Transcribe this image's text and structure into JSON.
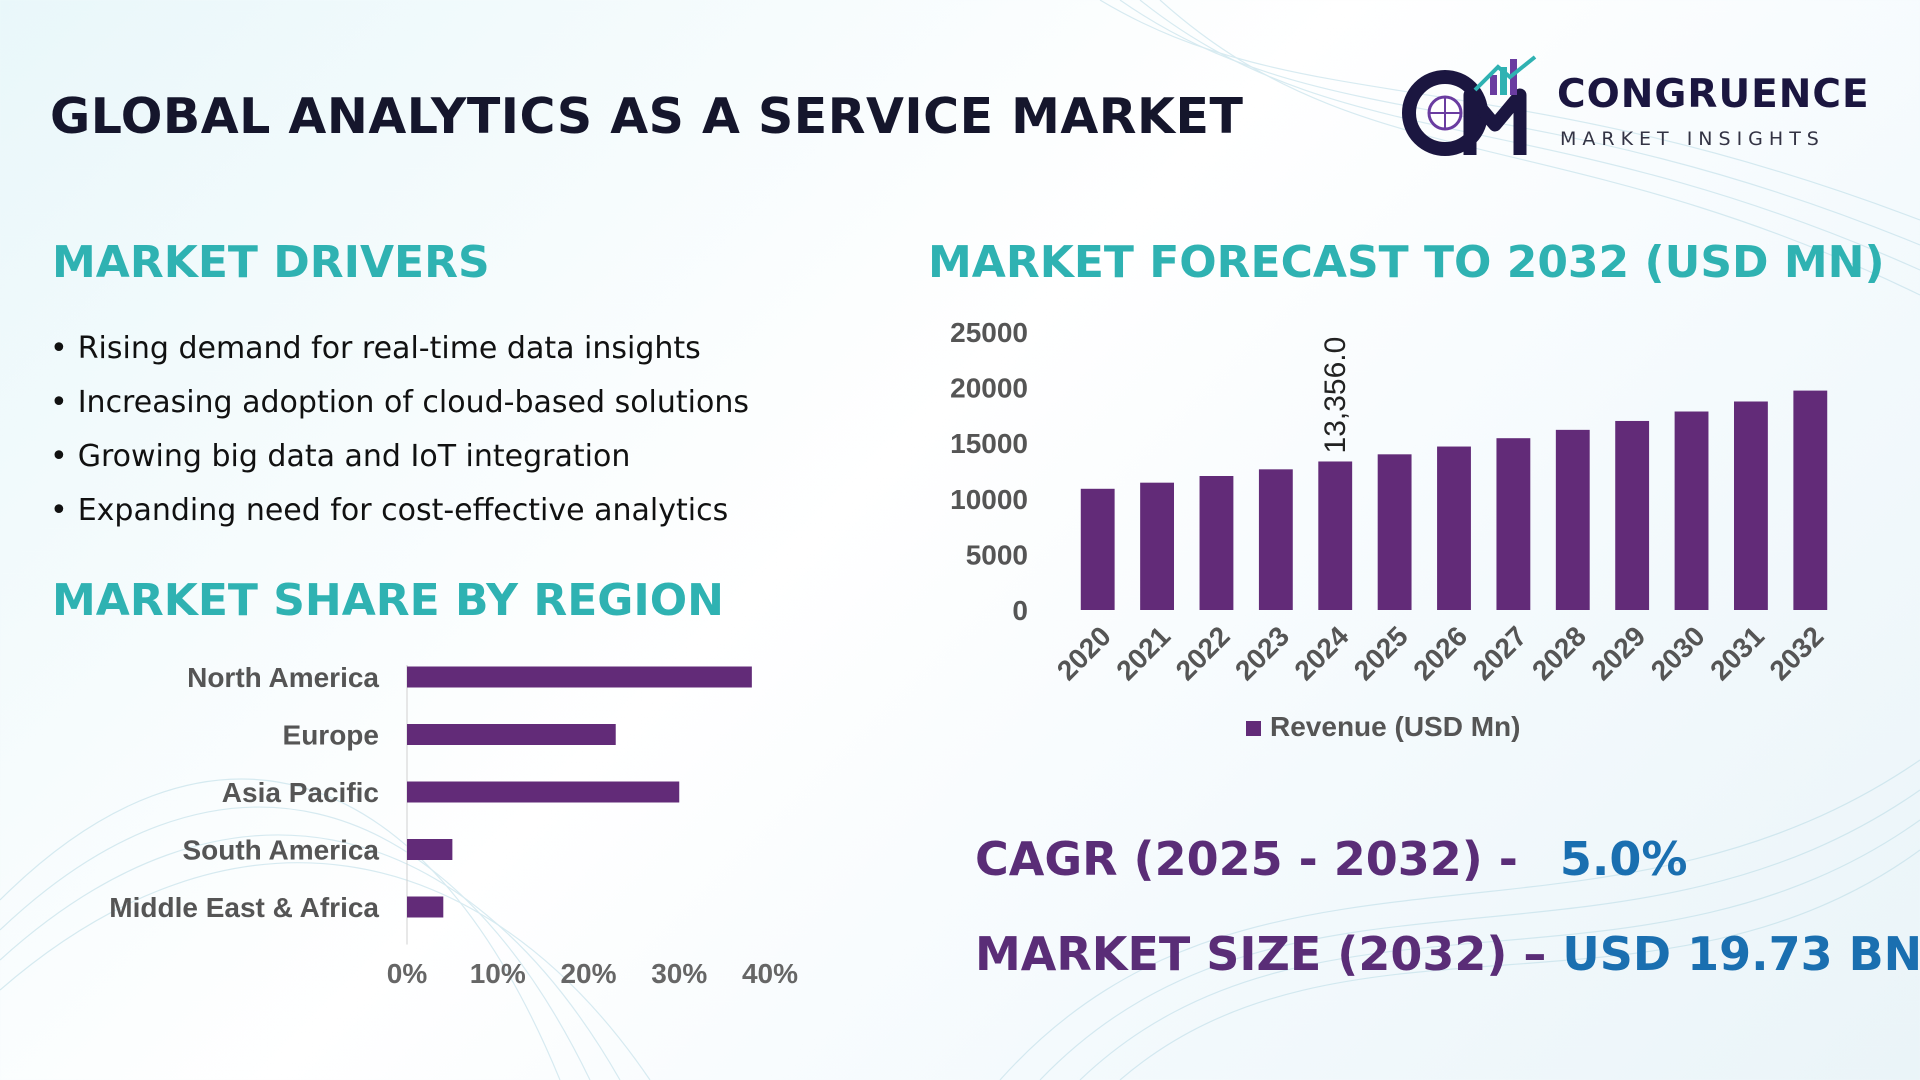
{
  "header": {
    "title": "GLOBAL ANALYTICS AS A SERVICE MARKET",
    "logo_name": "CONGRUENCE",
    "logo_tagline": "MARKET INSIGHTS"
  },
  "drivers": {
    "title": "MARKET DRIVERS",
    "items": [
      "Rising demand for real-time data insights",
      "Increasing adoption of cloud-based solutions",
      "Growing big data and IoT integration",
      "Expanding need for cost-effective analytics"
    ]
  },
  "region": {
    "title": "MARKET SHARE BY REGION"
  },
  "forecast": {
    "title": "MARKET FORECAST TO 2032 (USD MN)"
  },
  "stats": {
    "cagr_label": "CAGR (2025 - 2032) -",
    "cagr_value": "5.0%",
    "size_label": "MARKET SIZE (2032) –",
    "size_value": "USD 19.73 BN"
  },
  "colors": {
    "bar": "#622b78",
    "accent_teal": "#2fb2b2",
    "stat_purple": "#5a2d77",
    "stat_blue": "#1a6fb0"
  },
  "chart_data": [
    {
      "type": "bar",
      "orientation": "horizontal",
      "categories": [
        "North America",
        "Europe",
        "Asia Pacific",
        "South America",
        "Middle East & Africa"
      ],
      "values": [
        38,
        23,
        30,
        5,
        4
      ],
      "unit": "%",
      "xlim": [
        0,
        40
      ],
      "xticks": [
        "0%",
        "10%",
        "20%",
        "30%",
        "40%"
      ],
      "grid": false,
      "legend": "none"
    },
    {
      "type": "bar",
      "orientation": "vertical",
      "categories": [
        "2020",
        "2021",
        "2022",
        "2023",
        "2024",
        "2025",
        "2026",
        "2027",
        "2028",
        "2029",
        "2030",
        "2031",
        "2032"
      ],
      "series": [
        {
          "name": "Revenue (USD Mn)",
          "values": [
            10900,
            11450,
            12050,
            12650,
            13356,
            14000,
            14700,
            15450,
            16200,
            17000,
            17850,
            18750,
            19730
          ]
        }
      ],
      "data_labels": [
        {
          "category": "2024",
          "text": "13,356.0"
        }
      ],
      "ylim": [
        0,
        25000
      ],
      "yticks": [
        "0",
        "5000",
        "10000",
        "15000",
        "20000",
        "25000"
      ],
      "grid": false,
      "legend": "bottom-center"
    }
  ]
}
